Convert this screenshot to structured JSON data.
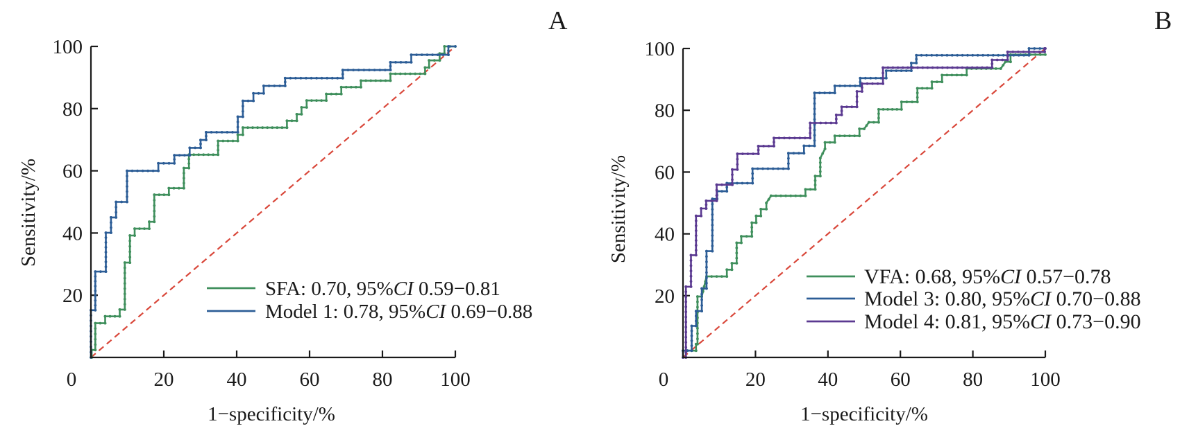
{
  "chart_data": [
    {
      "type": "line",
      "subtype": "roc-step",
      "panel_label": "A",
      "title": "",
      "xlabel": "1−specificity/%",
      "ylabel": "Sensitivity/%",
      "xlim": [
        0,
        100
      ],
      "ylim": [
        0,
        100
      ],
      "x_ticks": [
        "0",
        "20",
        "40",
        "60",
        "80",
        "100"
      ],
      "y_ticks": [
        "20",
        "40",
        "60",
        "80",
        "100"
      ],
      "grid": false,
      "legend_position": "bottom-right",
      "reference_line": {
        "name": "chance",
        "style": "dashed",
        "color": "#d9473a",
        "points": [
          [
            0,
            0
          ],
          [
            100,
            100
          ]
        ]
      },
      "series": [
        {
          "name": "SFA",
          "legend": {
            "label": "SFA: 0.70, 95%",
            "ci_label": "CI",
            "ci_range": " 0.59−0.81"
          },
          "auc": 0.7,
          "ci": [
            0.59,
            0.81
          ],
          "color": "#3f8f5c",
          "points": [
            [
              0,
              0
            ],
            [
              0.2,
              0
            ],
            [
              0.2,
              2.4
            ],
            [
              1.2,
              2.4
            ],
            [
              1.2,
              11
            ],
            [
              3.9,
              11
            ],
            [
              3.9,
              13.2
            ],
            [
              7.9,
              13.2
            ],
            [
              7.9,
              15.4
            ],
            [
              9.3,
              15.4
            ],
            [
              9.3,
              30.5
            ],
            [
              10.7,
              30.5
            ],
            [
              10.7,
              39.2
            ],
            [
              12,
              39.2
            ],
            [
              12,
              41.4
            ],
            [
              16,
              41.4
            ],
            [
              16,
              43.6
            ],
            [
              17.4,
              43.6
            ],
            [
              17.4,
              52.3
            ],
            [
              21.4,
              52.3
            ],
            [
              21.4,
              54.4
            ],
            [
              25.5,
              54.4
            ],
            [
              25.5,
              60.9
            ],
            [
              26.9,
              60.9
            ],
            [
              26.9,
              65.2
            ],
            [
              34.9,
              65.2
            ],
            [
              34.9,
              69.6
            ],
            [
              40.3,
              69.6
            ],
            [
              40.3,
              71.6
            ],
            [
              41.7,
              71.6
            ],
            [
              41.7,
              73.9
            ],
            [
              53.8,
              73.9
            ],
            [
              53.8,
              76.1
            ],
            [
              56.5,
              76.1
            ],
            [
              56.5,
              78.2
            ],
            [
              57.8,
              78.2
            ],
            [
              57.8,
              80.4
            ],
            [
              59.2,
              80.4
            ],
            [
              59.2,
              82.6
            ],
            [
              64.6,
              82.6
            ],
            [
              64.6,
              84.7
            ],
            [
              68.7,
              84.7
            ],
            [
              68.7,
              86.9
            ],
            [
              74.1,
              86.9
            ],
            [
              74.1,
              89
            ],
            [
              82.2,
              89
            ],
            [
              82.2,
              91.2
            ],
            [
              91.7,
              91.2
            ],
            [
              91.7,
              93.2
            ],
            [
              92.8,
              93.2
            ],
            [
              92.8,
              95.5
            ],
            [
              95.7,
              95.5
            ],
            [
              95.7,
              97.7
            ],
            [
              97,
              97.7
            ],
            [
              97,
              100
            ],
            [
              100,
              100
            ]
          ]
        },
        {
          "name": "Model 1",
          "legend": {
            "label": "Model 1: 0.78, 95%",
            "ci_label": "CI",
            "ci_range": " 0.69−0.88"
          },
          "auc": 0.78,
          "ci": [
            0.69,
            0.88
          ],
          "color": "#2c5d96",
          "points": [
            [
              0,
              0
            ],
            [
              0,
              15.2
            ],
            [
              1.2,
              15.2
            ],
            [
              1.2,
              27.6
            ],
            [
              4.1,
              27.6
            ],
            [
              4.1,
              40.1
            ],
            [
              5.5,
              40.1
            ],
            [
              5.5,
              45
            ],
            [
              6.9,
              45
            ],
            [
              6.9,
              50
            ],
            [
              9.9,
              50
            ],
            [
              9.9,
              60
            ],
            [
              18.5,
              60
            ],
            [
              18.5,
              62.4
            ],
            [
              22.9,
              62.4
            ],
            [
              22.9,
              65
            ],
            [
              27.1,
              65
            ],
            [
              27.1,
              67.4
            ],
            [
              30.1,
              67.4
            ],
            [
              30.1,
              69.9
            ],
            [
              31.6,
              69.9
            ],
            [
              31.6,
              72.4
            ],
            [
              40.3,
              72.4
            ],
            [
              40.3,
              77.4
            ],
            [
              41.7,
              77.4
            ],
            [
              41.7,
              82.5
            ],
            [
              44.6,
              82.5
            ],
            [
              44.6,
              84.9
            ],
            [
              47.4,
              84.9
            ],
            [
              47.4,
              87.3
            ],
            [
              53.3,
              87.3
            ],
            [
              53.3,
              89.8
            ],
            [
              69.1,
              89.8
            ],
            [
              69.1,
              92.4
            ],
            [
              82.2,
              92.4
            ],
            [
              82.2,
              94.9
            ],
            [
              87.9,
              94.9
            ],
            [
              87.9,
              97.3
            ],
            [
              98.1,
              97.3
            ],
            [
              98.1,
              100
            ],
            [
              100,
              100
            ]
          ]
        }
      ]
    },
    {
      "type": "line",
      "subtype": "roc-step",
      "panel_label": "B",
      "title": "",
      "xlabel": "1−specificity/%",
      "ylabel": "Sensitivity/%",
      "xlim": [
        0,
        100
      ],
      "ylim": [
        0,
        100
      ],
      "x_ticks": [
        "0",
        "20",
        "40",
        "60",
        "80",
        "100"
      ],
      "y_ticks": [
        "20",
        "40",
        "60",
        "80",
        "100"
      ],
      "grid": false,
      "legend_position": "bottom-right",
      "reference_line": {
        "name": "chance",
        "style": "dashed",
        "color": "#d9473a",
        "points": [
          [
            0,
            0
          ],
          [
            100,
            100
          ]
        ]
      },
      "series": [
        {
          "name": "VFA",
          "legend": {
            "label": "VFA: 0.68, 95%",
            "ci_label": "CI",
            "ci_range": " 0.57−0.78"
          },
          "auc": 0.68,
          "ci": [
            0.57,
            0.78
          ],
          "color": "#3f8f5c",
          "points": [
            [
              0,
              0
            ],
            [
              0,
              2.2
            ],
            [
              3.6,
              2.2
            ],
            [
              3.6,
              4.3
            ],
            [
              4,
              4.3
            ],
            [
              4,
              19.7
            ],
            [
              5.2,
              19.7
            ],
            [
              6.5,
              26.2
            ],
            [
              12.1,
              26.2
            ],
            [
              12.1,
              28.4
            ],
            [
              13.5,
              28.4
            ],
            [
              13.5,
              30.5
            ],
            [
              14.8,
              30.5
            ],
            [
              14.8,
              37.1
            ],
            [
              16.1,
              37.1
            ],
            [
              16.1,
              39.2
            ],
            [
              19,
              39.2
            ],
            [
              19,
              43.6
            ],
            [
              20.2,
              43.6
            ],
            [
              20.2,
              45.8
            ],
            [
              21.5,
              45.8
            ],
            [
              21.5,
              48
            ],
            [
              23,
              48
            ],
            [
              23,
              50
            ],
            [
              24.3,
              52.3
            ],
            [
              33.8,
              52.3
            ],
            [
              33.8,
              54.4
            ],
            [
              36.5,
              54.4
            ],
            [
              36.5,
              58.7
            ],
            [
              37.9,
              58.7
            ],
            [
              37.9,
              64.5
            ],
            [
              39.2,
              67.5
            ],
            [
              39.2,
              69.6
            ],
            [
              41.9,
              69.6
            ],
            [
              41.9,
              71.7
            ],
            [
              48.7,
              71.7
            ],
            [
              48.7,
              74
            ],
            [
              50,
              74
            ],
            [
              51.3,
              76.1
            ],
            [
              54,
              76.1
            ],
            [
              54,
              80.3
            ],
            [
              60.3,
              80.3
            ],
            [
              60.3,
              82.7
            ],
            [
              64.7,
              82.7
            ],
            [
              64.7,
              87.1
            ],
            [
              68.7,
              87.1
            ],
            [
              68.7,
              89.2
            ],
            [
              71.5,
              89.2
            ],
            [
              71.5,
              91.4
            ],
            [
              78.3,
              91.4
            ],
            [
              78.3,
              93.5
            ],
            [
              87.7,
              93.5
            ],
            [
              89,
              95.7
            ],
            [
              90.4,
              95.7
            ],
            [
              90.4,
              98
            ],
            [
              100,
              98
            ]
          ]
        },
        {
          "name": "Model 3",
          "legend": {
            "label": "Model 3: 0.80, 95%",
            "ci_label": "CI",
            "ci_range": " 0.70−0.88"
          },
          "auc": 0.8,
          "ci": [
            0.7,
            0.88
          ],
          "color": "#2c5d96",
          "points": [
            [
              0,
              0
            ],
            [
              0,
              2.2
            ],
            [
              2.4,
              2.2
            ],
            [
              2.4,
              10.2
            ],
            [
              3.6,
              10.2
            ],
            [
              3.6,
              15
            ],
            [
              5.2,
              15
            ],
            [
              5.2,
              22.3
            ],
            [
              6.5,
              22.3
            ],
            [
              6.5,
              34.4
            ],
            [
              8.1,
              34.4
            ],
            [
              8.1,
              51.3
            ],
            [
              9.4,
              51.3
            ],
            [
              9.4,
              53.8
            ],
            [
              12.1,
              53.8
            ],
            [
              12.1,
              56.4
            ],
            [
              19.2,
              56.4
            ],
            [
              19.2,
              61.1
            ],
            [
              29.1,
              61.1
            ],
            [
              29.1,
              66.1
            ],
            [
              33.4,
              66.1
            ],
            [
              33.4,
              68.5
            ],
            [
              36.3,
              68.5
            ],
            [
              36.3,
              85.6
            ],
            [
              41.9,
              85.6
            ],
            [
              41.9,
              87.9
            ],
            [
              48.9,
              87.9
            ],
            [
              48.9,
              90.4
            ],
            [
              56.1,
              90.4
            ],
            [
              56.1,
              92.8
            ],
            [
              63,
              92.8
            ],
            [
              63,
              95.3
            ],
            [
              64.4,
              95.3
            ],
            [
              64.4,
              97.8
            ],
            [
              95.5,
              97.8
            ],
            [
              95.5,
              100
            ],
            [
              100,
              100
            ]
          ]
        },
        {
          "name": "Model 4",
          "legend": {
            "label": "Model 4: 0.81, 95%",
            "ci_label": "CI",
            "ci_range": " 0.73−0.90"
          },
          "auc": 0.81,
          "ci": [
            0.73,
            0.9
          ],
          "color": "#5b3a91",
          "points": [
            [
              0,
              0
            ],
            [
              0.8,
              0
            ],
            [
              0.8,
              22.9
            ],
            [
              2.2,
              22.9
            ],
            [
              2.2,
              33.1
            ],
            [
              3.6,
              33.1
            ],
            [
              3.6,
              45.8
            ],
            [
              5,
              45.8
            ],
            [
              5,
              48.2
            ],
            [
              6.4,
              48.2
            ],
            [
              6.4,
              50.7
            ],
            [
              9.3,
              50.7
            ],
            [
              9.3,
              55.9
            ],
            [
              13.6,
              55.9
            ],
            [
              13.6,
              60.8
            ],
            [
              15,
              60.8
            ],
            [
              15,
              65.9
            ],
            [
              20.8,
              65.9
            ],
            [
              20.8,
              68.4
            ],
            [
              25.1,
              68.4
            ],
            [
              25.1,
              71
            ],
            [
              35.1,
              71
            ],
            [
              35.1,
              75.9
            ],
            [
              42.3,
              75.9
            ],
            [
              42.3,
              78.5
            ],
            [
              43.8,
              78.5
            ],
            [
              43.8,
              81.1
            ],
            [
              48,
              81.1
            ],
            [
              48,
              86.1
            ],
            [
              49.4,
              86.1
            ],
            [
              49.4,
              88.6
            ],
            [
              55.2,
              88.6
            ],
            [
              55.2,
              93.8
            ],
            [
              85.3,
              93.8
            ],
            [
              85.3,
              96.3
            ],
            [
              89.6,
              96.3
            ],
            [
              89.6,
              98.9
            ],
            [
              99.8,
              98.9
            ],
            [
              99.8,
              100
            ],
            [
              100,
              100
            ]
          ]
        }
      ]
    }
  ]
}
